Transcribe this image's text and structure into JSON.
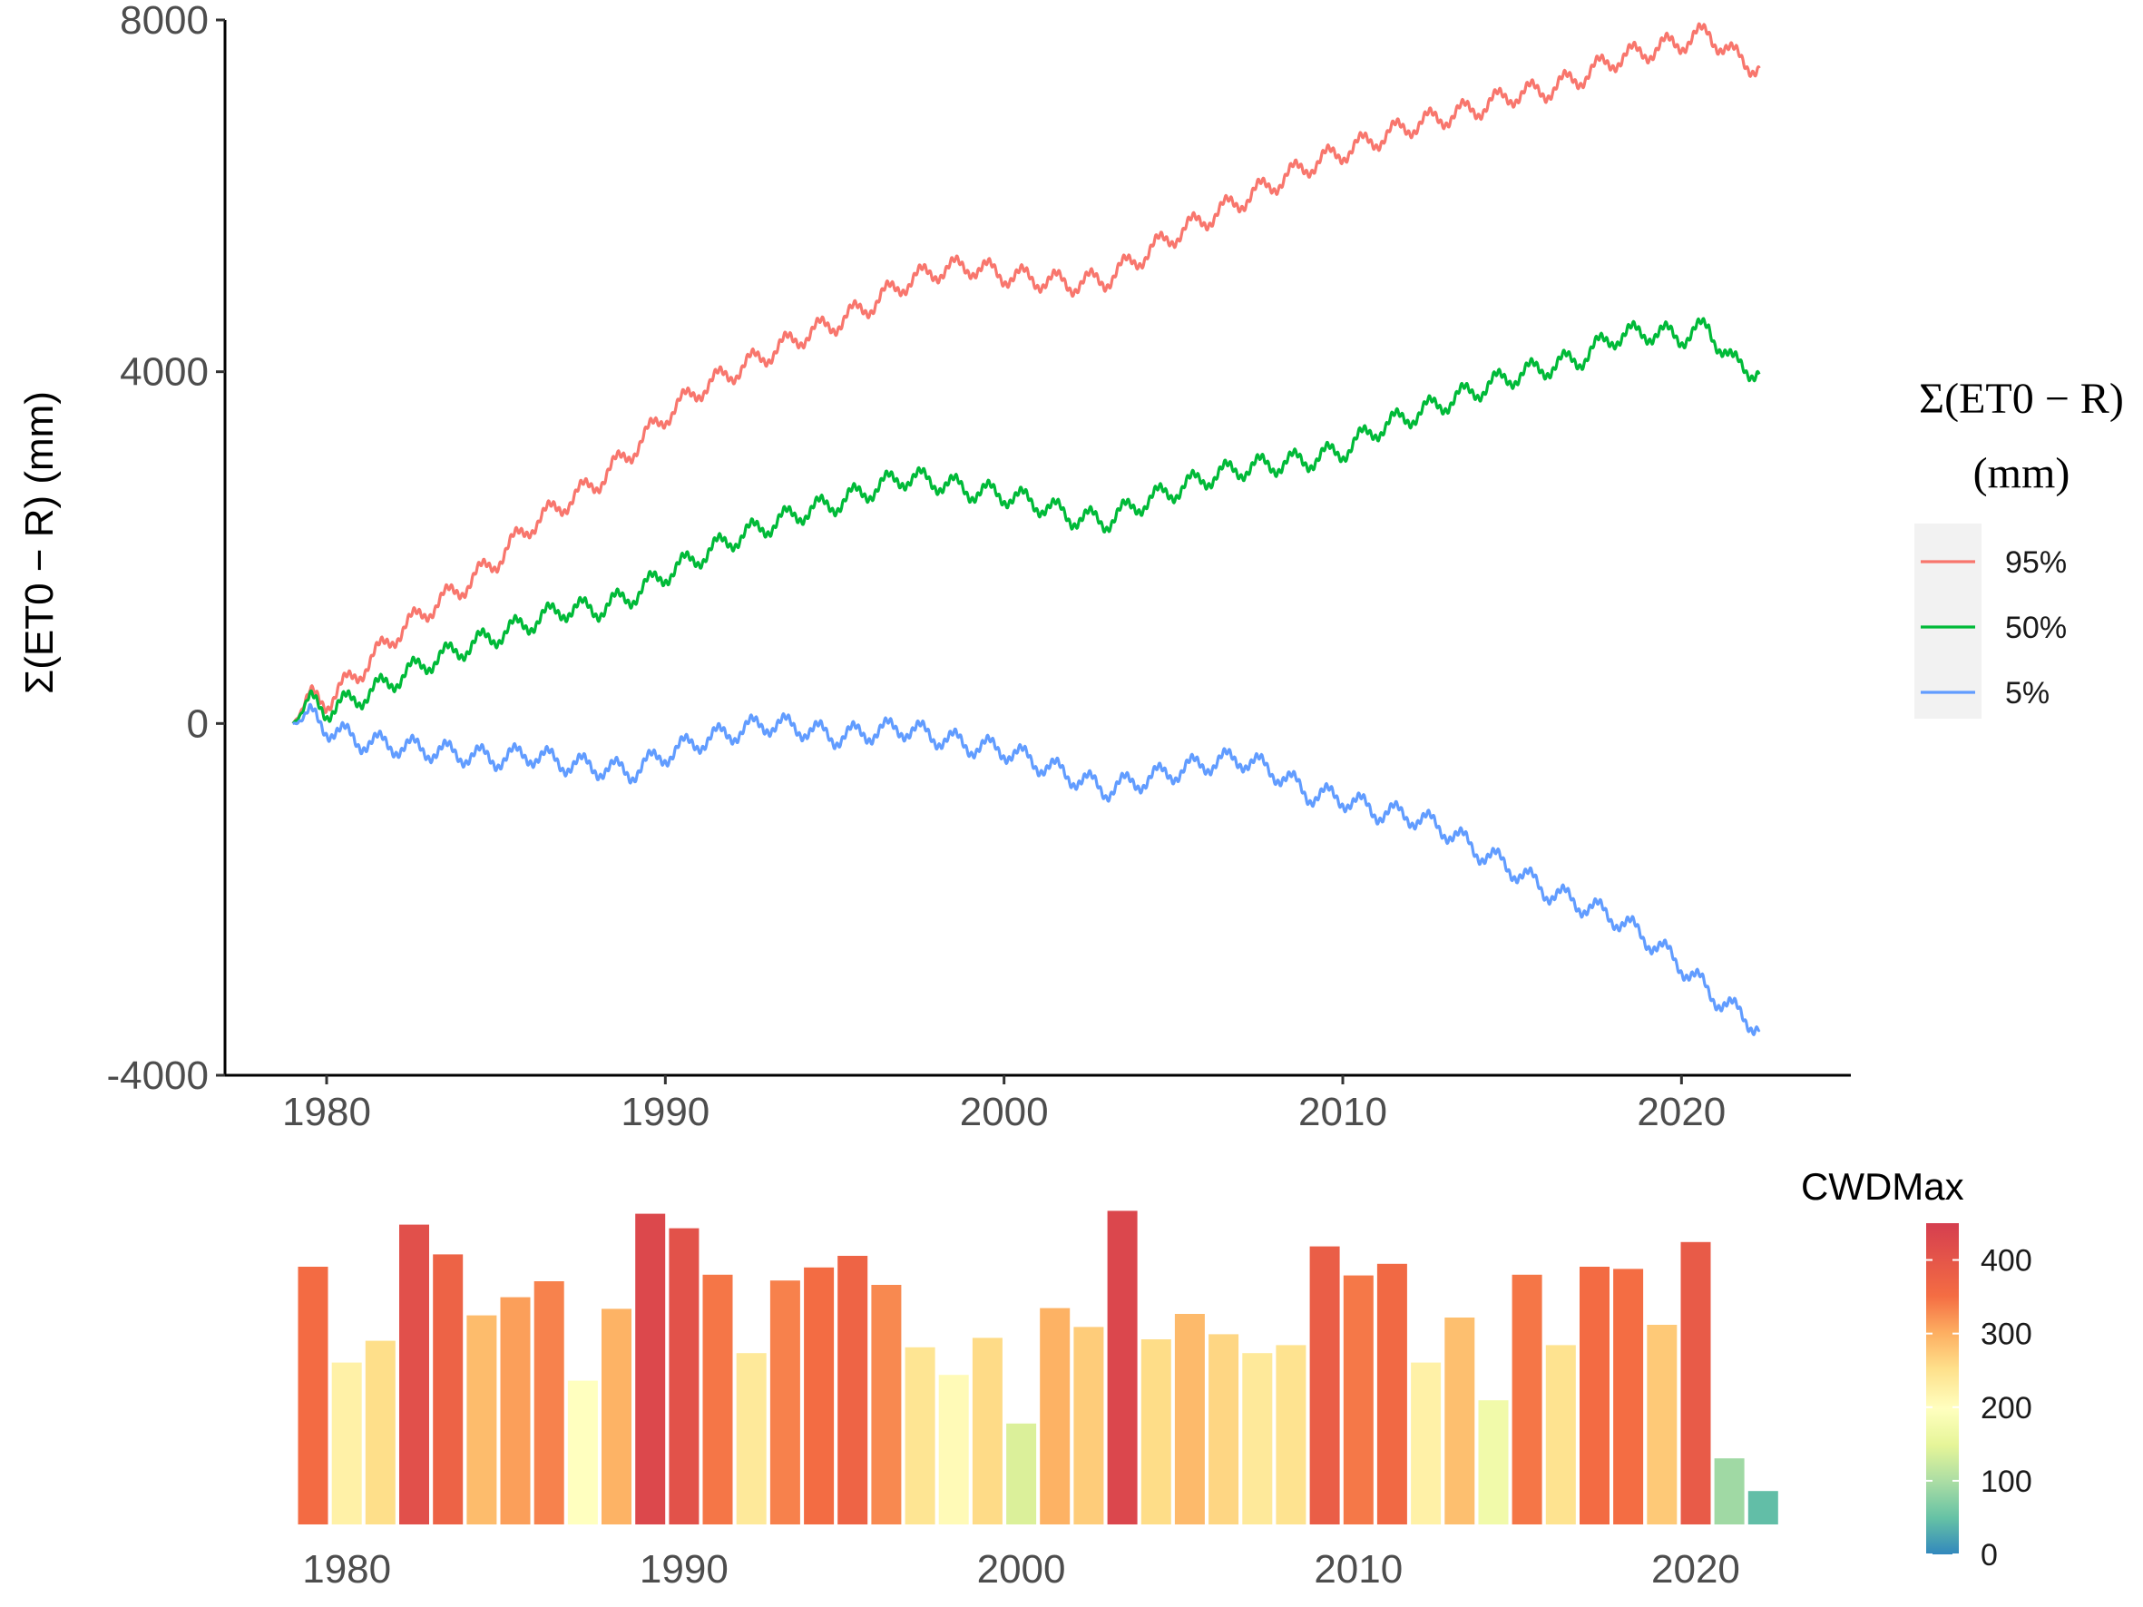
{
  "chart_data": [
    {
      "type": "line",
      "ylabel": "Σ(ET0 − R) (mm)",
      "xlim": [
        1977,
        2025
      ],
      "ylim": [
        -4000,
        8000
      ],
      "xticks": [
        "1980",
        "1990",
        "2000",
        "2010",
        "2020"
      ],
      "yticks": [
        "-4000",
        "0",
        "4000",
        "8000"
      ],
      "legend": {
        "title_line1": "Σ(ET0 − R)",
        "title_line2": "(mm)",
        "position": "right"
      },
      "series": [
        {
          "name": "95%",
          "color": "#F8766D",
          "x": [
            1979.0,
            1979.5,
            1980,
            1981,
            1982,
            1983,
            1984,
            1985,
            1986,
            1987,
            1988,
            1989,
            1990,
            1991,
            1992,
            1993,
            1994,
            1995,
            1996,
            1997,
            1998,
            1999,
            2000,
            2001,
            2002,
            2003,
            2004,
            2005,
            2006,
            2007,
            2008,
            2009,
            2010,
            2011,
            2012,
            2013,
            2014,
            2015,
            2016,
            2017,
            2018,
            2019,
            2020,
            2020.8,
            2021.5,
            2022.3
          ],
          "y": [
            0,
            300,
            250,
            600,
            1000,
            1300,
            1550,
            1850,
            2250,
            2500,
            2750,
            3100,
            3500,
            3800,
            4000,
            4200,
            4400,
            4550,
            4750,
            5000,
            5150,
            5200,
            5100,
            5050,
            5000,
            5050,
            5300,
            5550,
            5750,
            5950,
            6150,
            6350,
            6500,
            6650,
            6800,
            6900,
            7000,
            7150,
            7200,
            7350,
            7550,
            7650,
            7750,
            7850,
            7600,
            7450
          ]
        },
        {
          "name": "50%",
          "color": "#00BA38",
          "x": [
            1979.0,
            1979.5,
            1980,
            1981,
            1982,
            1983,
            1984,
            1985,
            1986,
            1987,
            1988,
            1989,
            1990,
            1991,
            1992,
            1993,
            1994,
            1995,
            1996,
            1997,
            1998,
            1999,
            2000,
            2001,
            2002,
            2003,
            2004,
            2005,
            2006,
            2007,
            2008,
            2009,
            2010,
            2011,
            2012,
            2013,
            2014,
            2015,
            2016,
            2017,
            2018,
            2019,
            2020,
            2020.8,
            2021.5,
            2022.3
          ],
          "y": [
            0,
            250,
            150,
            300,
            500,
            700,
            850,
            1000,
            1150,
            1300,
            1300,
            1450,
            1700,
            1900,
            2100,
            2250,
            2400,
            2500,
            2650,
            2800,
            2750,
            2650,
            2600,
            2500,
            2350,
            2300,
            2500,
            2650,
            2800,
            2900,
            2950,
            3000,
            3100,
            3350,
            3500,
            3650,
            3800,
            3950,
            4050,
            4150,
            4400,
            4450,
            4400,
            4500,
            4100,
            4000
          ]
        },
        {
          "name": "5%",
          "color": "#619CFF",
          "x": [
            1979.0,
            1979.5,
            1980,
            1981,
            1982,
            1983,
            1984,
            1985,
            1986,
            1987,
            1988,
            1989,
            1990,
            1991,
            1992,
            1993,
            1994,
            1995,
            1996,
            1997,
            1998,
            1999,
            2000,
            2001,
            2002,
            2003,
            2004,
            2005,
            2006,
            2007,
            2008,
            2009,
            2010,
            2011,
            2012,
            2013,
            2014,
            2015,
            2016,
            2017,
            2018,
            2019,
            2020,
            2020.8,
            2021.5,
            2022.3
          ],
          "y": [
            0,
            100,
            -50,
            -200,
            -250,
            -300,
            -350,
            -400,
            -350,
            -450,
            -500,
            -550,
            -350,
            -200,
            -100,
            0,
            -50,
            -150,
            -100,
            -50,
            -150,
            -250,
            -300,
            -450,
            -600,
            -750,
            -650,
            -550,
            -450,
            -400,
            -550,
            -800,
            -850,
            -1000,
            -1050,
            -1200,
            -1450,
            -1650,
            -1900,
            -2050,
            -2200,
            -2450,
            -2750,
            -3050,
            -3250,
            -3450
          ]
        }
      ]
    },
    {
      "type": "bar",
      "title": "",
      "xticks": [
        "1980",
        "1990",
        "2000",
        "2010",
        "2020"
      ],
      "colorbar": {
        "title": "CWDMax",
        "ticks": [
          "0",
          "100",
          "200",
          "300",
          "400"
        ],
        "min": 0,
        "max": 450
      },
      "years": [
        1979,
        1980,
        1981,
        1982,
        1983,
        1984,
        1985,
        1986,
        1987,
        1988,
        1989,
        1990,
        1991,
        1992,
        1993,
        1994,
        1995,
        1996,
        1997,
        1998,
        1999,
        2000,
        2001,
        2002,
        2003,
        2004,
        2005,
        2006,
        2007,
        2008,
        2009,
        2010,
        2011,
        2012,
        2013,
        2014,
        2015,
        2016,
        2017,
        2018,
        2019,
        2020,
        2021,
        2022
      ],
      "values": [
        355,
        223,
        253,
        413,
        372,
        288,
        313,
        335,
        198,
        297,
        428,
        408,
        344,
        236,
        336,
        354,
        370,
        330,
        244,
        206,
        257,
        139,
        298,
        272,
        432,
        255,
        290,
        262,
        236,
        247,
        383,
        343,
        359,
        223,
        285,
        171,
        344,
        247,
        355,
        352,
        275,
        389,
        91,
        46
      ]
    }
  ]
}
